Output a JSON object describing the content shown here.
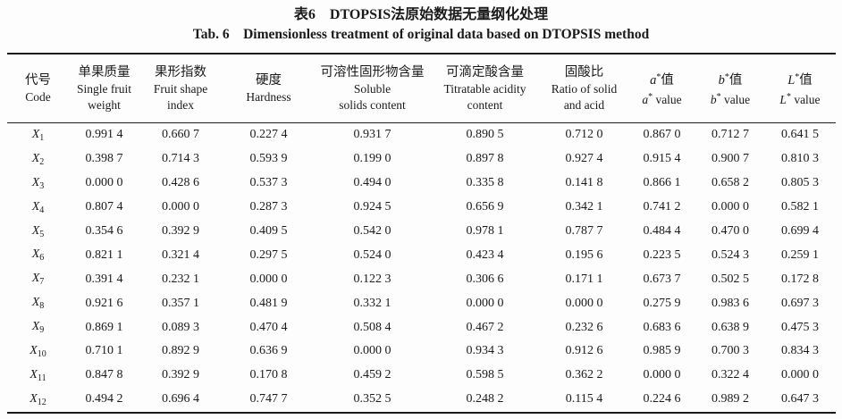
{
  "page": {
    "title_zh": "表6　DTOPSIS法原始数据无量纲化处理",
    "title_en": "Tab. 6　Dimensionless treatment of original data based on DTOPSIS method"
  },
  "chart_data": {
    "type": "table",
    "title": "表6 DTOPSIS法原始数据无量纲化处理 / Tab. 6 Dimensionless treatment of original data based on DTOPSIS method",
    "columns": [
      "代号 Code",
      "单果质量 Single fruit weight",
      "果形指数 Fruit shape index",
      "硬度 Hardness",
      "可溶性固形物含量 Soluble solids content",
      "可滴定酸含量 Titratable acidity content",
      "固酸比 Ratio of solid and acid",
      "a*值 a* value",
      "b*值 b* value",
      "L*值 L* value"
    ]
  },
  "table": {
    "columns": [
      {
        "id": "code",
        "zh": "代号",
        "en": "Code"
      },
      {
        "id": "single-fruit-weight",
        "zh": "单果质量",
        "en": "Single fruit\nweight"
      },
      {
        "id": "fruit-shape-index",
        "zh": "果形指数",
        "en": "Fruit shape\nindex"
      },
      {
        "id": "hardness",
        "zh": "硬度",
        "en": "Hardness"
      },
      {
        "id": "soluble-solids-content",
        "zh": "可溶性固形物含量",
        "en": "Soluble\nsolids content"
      },
      {
        "id": "titratable-acidity-content",
        "zh": "可滴定酸含量",
        "en": "Titratable acidity\ncontent"
      },
      {
        "id": "ratio-of-solid-and-acid",
        "zh": "固酸比",
        "en": "Ratio of solid\nand acid"
      },
      {
        "id": "a-value",
        "letter": "a",
        "star": "*",
        "zh": "值",
        "en": "value"
      },
      {
        "id": "b-value",
        "letter": "b",
        "star": "*",
        "zh": "值",
        "en": "value"
      },
      {
        "id": "l-value",
        "letter": "L",
        "star": "*",
        "zh": "值",
        "en": "value"
      }
    ],
    "rows": [
      {
        "code": "X",
        "sub": "1",
        "values": [
          "0.991 4",
          "0.660 7",
          "0.227 4",
          "0.931 7",
          "0.890 5",
          "0.712 0",
          "0.867 0",
          "0.712 7",
          "0.641 5"
        ]
      },
      {
        "code": "X",
        "sub": "2",
        "values": [
          "0.398 7",
          "0.714 3",
          "0.593 9",
          "0.199 0",
          "0.897 8",
          "0.927 4",
          "0.915 4",
          "0.900 7",
          "0.810 3"
        ]
      },
      {
        "code": "X",
        "sub": "3",
        "values": [
          "0.000 0",
          "0.428 6",
          "0.537 3",
          "0.494 0",
          "0.335 8",
          "0.141 8",
          "0.866 1",
          "0.658 2",
          "0.805 3"
        ]
      },
      {
        "code": "X",
        "sub": "4",
        "values": [
          "0.807 4",
          "0.000 0",
          "0.287 3",
          "0.924 5",
          "0.656 9",
          "0.342 1",
          "0.741 2",
          "0.000 0",
          "0.582 1"
        ]
      },
      {
        "code": "X",
        "sub": "5",
        "values": [
          "0.354 6",
          "0.392 9",
          "0.409 5",
          "0.542 0",
          "0.978 1",
          "0.787 7",
          "0.484 4",
          "0.470 0",
          "0.699 4"
        ]
      },
      {
        "code": "X",
        "sub": "6",
        "values": [
          "0.821 1",
          "0.321 4",
          "0.297 5",
          "0.524 0",
          "0.423 4",
          "0.195 6",
          "0.223 5",
          "0.524 3",
          "0.259 1"
        ]
      },
      {
        "code": "X",
        "sub": "7",
        "values": [
          "0.391 4",
          "0.232 1",
          "0.000 0",
          "0.122 3",
          "0.306 6",
          "0.171 1",
          "0.673 7",
          "0.502 5",
          "0.172 8"
        ]
      },
      {
        "code": "X",
        "sub": "8",
        "values": [
          "0.921 6",
          "0.357 1",
          "0.481 9",
          "0.332 1",
          "0.000 0",
          "0.000 0",
          "0.275 9",
          "0.983 6",
          "0.697 3"
        ]
      },
      {
        "code": "X",
        "sub": "9",
        "values": [
          "0.869 1",
          "0.089 3",
          "0.470 4",
          "0.508 4",
          "0.467 2",
          "0.232 6",
          "0.683 6",
          "0.638 9",
          "0.475 3"
        ]
      },
      {
        "code": "X",
        "sub": "10",
        "values": [
          "0.710 1",
          "0.892 9",
          "0.636 9",
          "0.000 0",
          "0.934 3",
          "0.912 6",
          "0.985 9",
          "0.700 3",
          "0.834 3"
        ]
      },
      {
        "code": "X",
        "sub": "11",
        "values": [
          "0.847 8",
          "0.392 9",
          "0.170 8",
          "0.459 2",
          "0.598 5",
          "0.362 2",
          "0.000 0",
          "0.322 4",
          "0.000 0"
        ]
      },
      {
        "code": "X",
        "sub": "12",
        "values": [
          "0.494 2",
          "0.696 4",
          "0.747 7",
          "0.352 5",
          "0.248 2",
          "0.115 4",
          "0.224 6",
          "0.989 2",
          "0.647 3"
        ]
      }
    ]
  }
}
